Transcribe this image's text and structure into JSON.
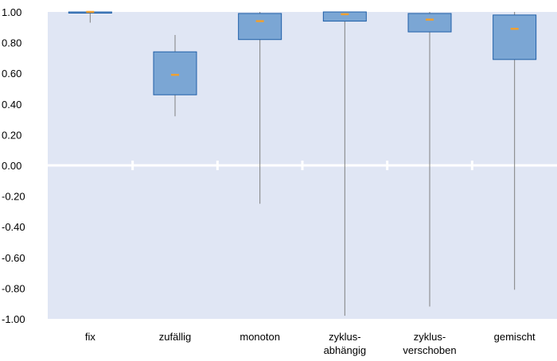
{
  "chart_data": {
    "type": "box",
    "title": "",
    "xlabel": "",
    "ylabel": "",
    "ylim": [
      -1.0,
      1.0
    ],
    "yticks": [
      "1.00",
      "0.80",
      "0.60",
      "0.40",
      "0.20",
      "0.00",
      "-0.20",
      "-0.40",
      "-0.60",
      "-0.80",
      "-1.00"
    ],
    "categories": [
      [
        "fix"
      ],
      [
        "zufällig"
      ],
      [
        "monoton"
      ],
      [
        "zyklus-",
        "abhängig"
      ],
      [
        "zyklus-",
        "verschoben"
      ],
      [
        "gemischt"
      ]
    ],
    "boxes": [
      {
        "min": 0.93,
        "q1": 0.995,
        "median": 1.0,
        "q3": 1.0,
        "max": 1.0
      },
      {
        "min": 0.32,
        "q1": 0.46,
        "median": 0.59,
        "q3": 0.74,
        "max": 0.85
      },
      {
        "min": -0.25,
        "q1": 0.82,
        "median": 0.94,
        "q3": 0.99,
        "max": 1.0
      },
      {
        "min": -0.98,
        "q1": 0.94,
        "median": 0.985,
        "q3": 1.0,
        "max": 1.0
      },
      {
        "min": -0.92,
        "q1": 0.87,
        "median": 0.95,
        "q3": 0.99,
        "max": 1.0
      },
      {
        "min": -0.81,
        "q1": 0.69,
        "median": 0.89,
        "q3": 0.98,
        "max": 1.0
      }
    ],
    "grid": false,
    "colors": {
      "plot_bg": "#e0e6f4",
      "box_fill": "#7ba6d4",
      "box_stroke": "#1f5fa8",
      "median": "#f0a030",
      "whisker": "#808080",
      "zero_line": "#ffffff"
    }
  }
}
